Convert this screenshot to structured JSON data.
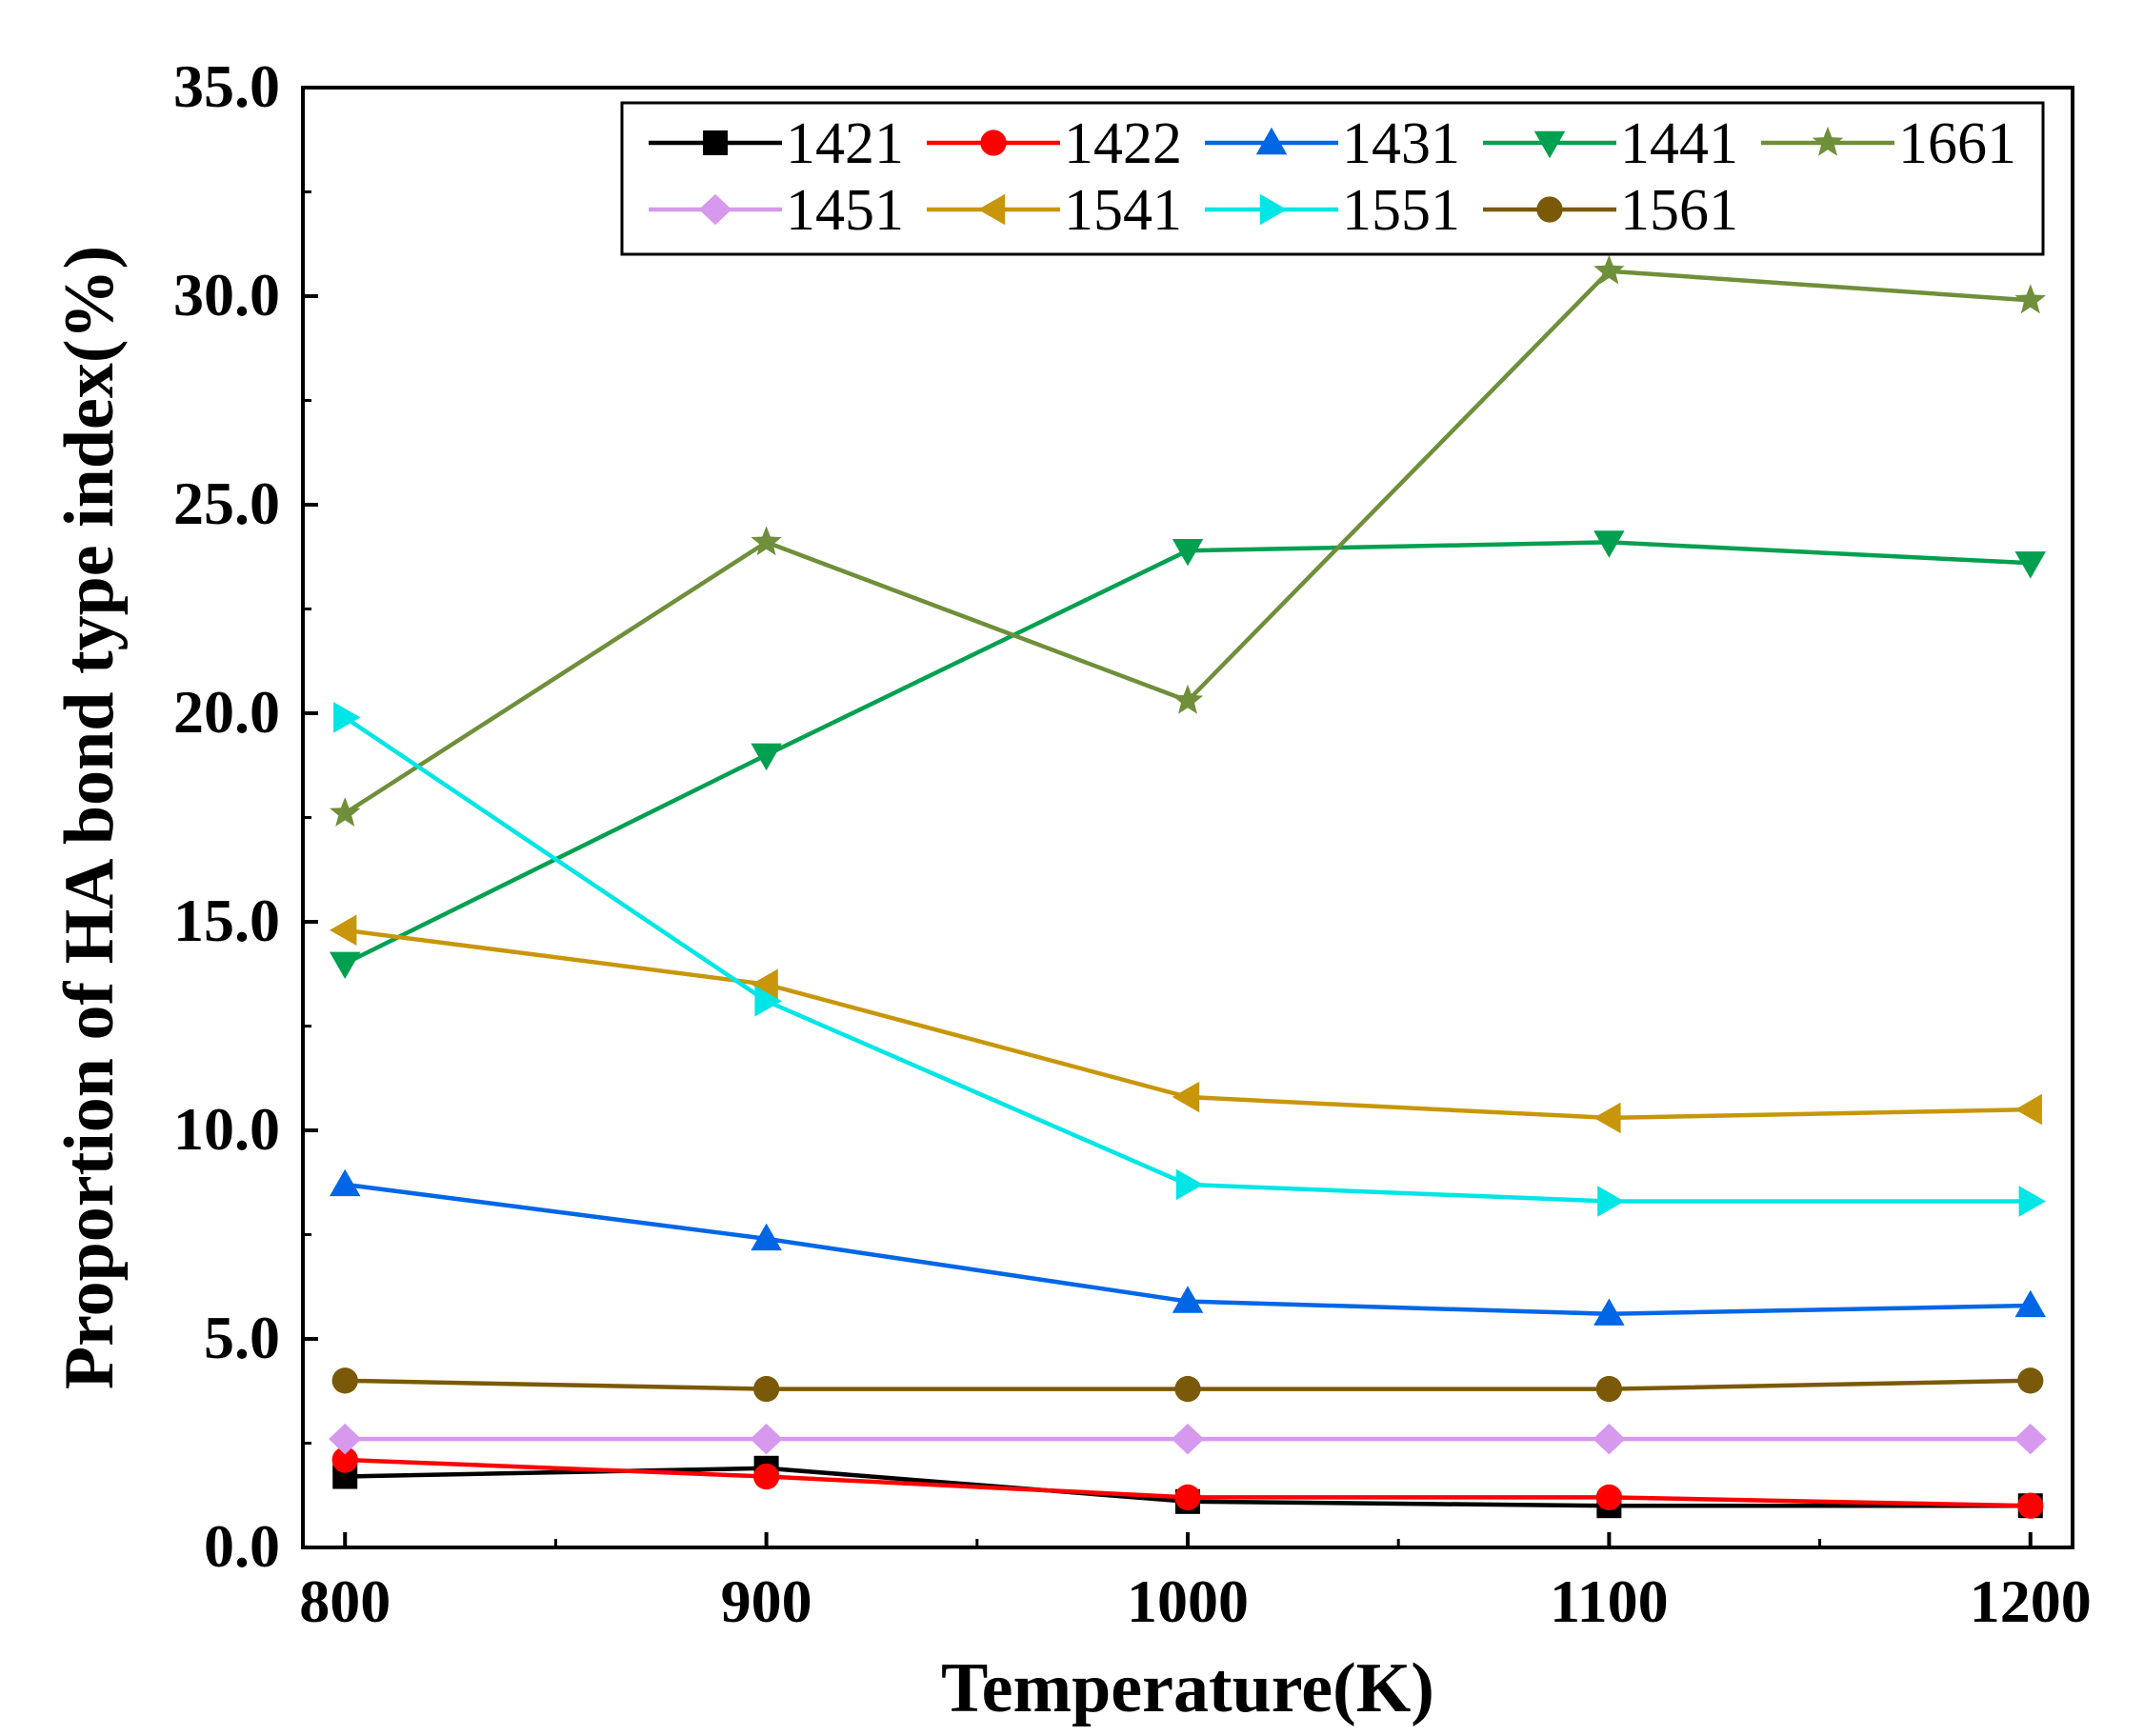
{
  "chart_data": {
    "type": "line",
    "title": "",
    "xlabel": "Temperature(K)",
    "ylabel": "Proportion of HA bond type index(%)",
    "x": [
      800,
      900,
      1000,
      1100,
      1200
    ],
    "xlim": [
      790,
      1210
    ],
    "ylim": [
      0,
      35
    ],
    "xticks": [
      800,
      900,
      1000,
      1100,
      1200
    ],
    "xtick_labels": [
      "800",
      "900",
      "1000",
      "1100",
      "1200"
    ],
    "yticks": [
      0,
      5,
      10,
      15,
      20,
      25,
      30,
      35
    ],
    "ytick_labels": [
      "0.0",
      "5.0",
      "10.0",
      "15.0",
      "20.0",
      "25.0",
      "30.0",
      "35.0"
    ],
    "grid": false,
    "legend_position": "top",
    "series": [
      {
        "name": "1421",
        "marker": "square",
        "color": "#000000",
        "values": [
          1.7,
          1.9,
          1.1,
          1.0,
          1.0
        ]
      },
      {
        "name": "1422",
        "marker": "circle",
        "color": "#ff0000",
        "values": [
          2.1,
          1.7,
          1.2,
          1.2,
          1.0
        ]
      },
      {
        "name": "1431",
        "marker": "triangle-up",
        "color": "#0066e6",
        "values": [
          8.7,
          7.4,
          5.9,
          5.6,
          5.8
        ]
      },
      {
        "name": "1441",
        "marker": "triangle-down",
        "color": "#00a050",
        "values": [
          14.0,
          19.0,
          23.9,
          24.1,
          23.6
        ]
      },
      {
        "name": "1661",
        "marker": "star",
        "color": "#6f8f3a",
        "values": [
          17.6,
          24.1,
          20.3,
          30.6,
          29.9
        ]
      },
      {
        "name": "1451",
        "marker": "diamond",
        "color": "#d699ee",
        "values": [
          2.6,
          2.6,
          2.6,
          2.6,
          2.6
        ]
      },
      {
        "name": "1541",
        "marker": "triangle-left",
        "color": "#c8960a",
        "values": [
          14.8,
          13.5,
          10.8,
          10.3,
          10.5
        ]
      },
      {
        "name": "1551",
        "marker": "triangle-right",
        "color": "#00e5e5",
        "values": [
          19.9,
          13.1,
          8.7,
          8.3,
          8.3
        ]
      },
      {
        "name": "1561",
        "marker": "circle",
        "color": "#7a5a08",
        "values": [
          4.0,
          3.8,
          3.8,
          3.8,
          4.0
        ]
      }
    ]
  }
}
